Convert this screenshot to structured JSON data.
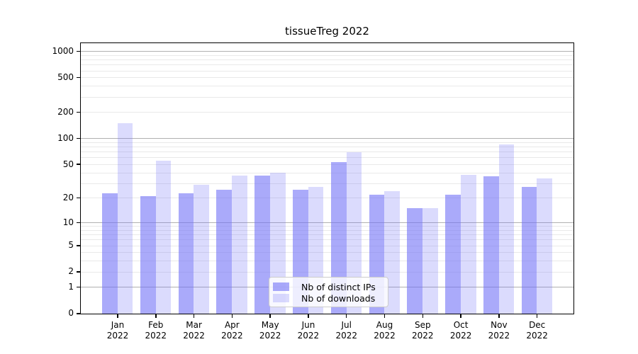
{
  "chart_data": {
    "type": "bar",
    "title": "tissueTreg 2022",
    "categories": [
      "Jan",
      "Feb",
      "Mar",
      "Apr",
      "May",
      "Jun",
      "Jul",
      "Aug",
      "Sep",
      "Oct",
      "Nov",
      "Dec"
    ],
    "xtick_year": "2022",
    "series": [
      {
        "name": "Nb of distinct IPs",
        "values": [
          23,
          21,
          23,
          25,
          37,
          25,
          53,
          22,
          15,
          22,
          36,
          27
        ]
      },
      {
        "name": "Nb of downloads",
        "values": [
          150,
          55,
          29,
          37,
          40,
          27,
          70,
          24,
          15,
          38,
          85,
          34
        ]
      }
    ],
    "xlabel": "",
    "ylabel": "",
    "yscale": "log1p",
    "ylim": [
      0,
      1280
    ],
    "yticks": [
      0,
      1,
      2,
      5,
      10,
      20,
      50,
      100,
      200,
      500,
      1000
    ],
    "grid": {
      "on": true,
      "major": [
        1,
        10,
        100,
        1000
      ],
      "minor": [
        2,
        3,
        4,
        5,
        6,
        7,
        8,
        9,
        20,
        30,
        40,
        50,
        60,
        70,
        80,
        90,
        200,
        300,
        400,
        500,
        600,
        700,
        800,
        900
      ]
    },
    "legend_position": "lower-center"
  },
  "colors": {
    "bar_distinct_ips": "rgba(113,113,247,0.6)",
    "bar_downloads": "rgba(113,113,247,0.25)",
    "grid_major": "#b0b0b0",
    "grid_minor": "#e9e9e9",
    "spine": "#000000",
    "text": "#000000",
    "background": "#ffffff"
  }
}
